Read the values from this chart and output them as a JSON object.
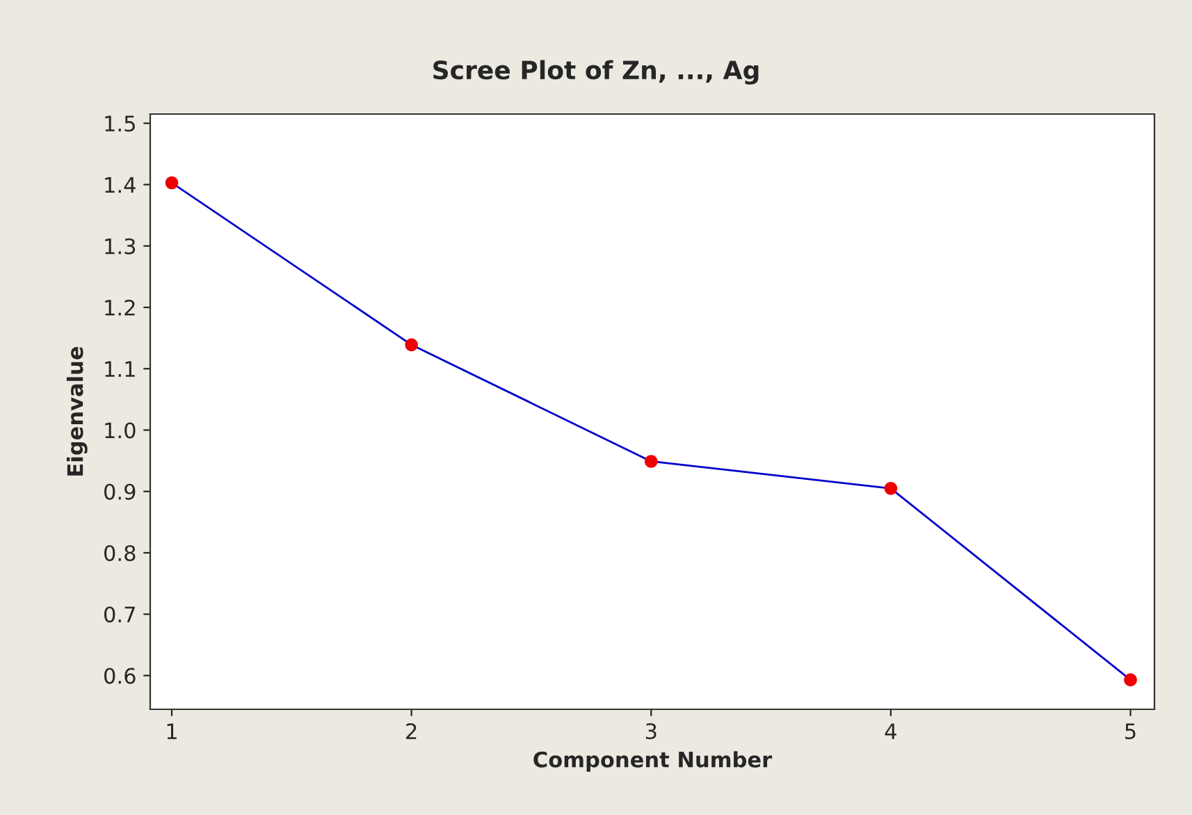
{
  "chart_data": {
    "type": "line",
    "title": "Scree Plot of Zn, ..., Ag",
    "xlabel": "Component Number",
    "ylabel": "Eigenvalue",
    "x": [
      1,
      2,
      3,
      4,
      5
    ],
    "series": [
      {
        "color": "#0000cc",
        "values": [
          1.403,
          1.139,
          0.949,
          0.905,
          0.593
        ]
      }
    ],
    "marker": "circle",
    "line_style": "solid",
    "grid": false,
    "xlim": [
      0.91,
      5.1
    ],
    "xticks": [
      1,
      2,
      3,
      4,
      5
    ],
    "ylim": [
      0.545,
      1.515
    ],
    "yticks": [
      0.6,
      0.7,
      0.8,
      0.9,
      {
        "value": 1.0,
        "label": "1.0"
      },
      1.1,
      1.2,
      1.3,
      1.4,
      1.5
    ]
  }
}
